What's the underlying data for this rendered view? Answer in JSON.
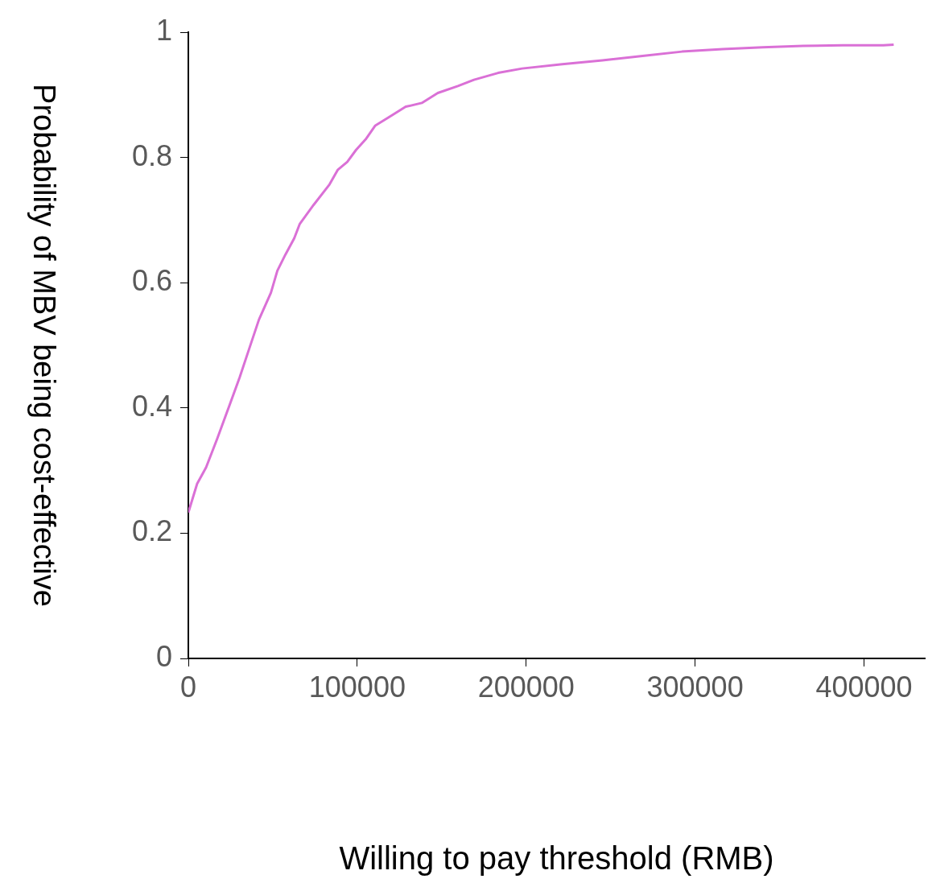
{
  "chart_data": {
    "type": "line",
    "xlabel": "Willing to pay threshold (RMB)",
    "ylabel": "Probability of MBV being cost-effective",
    "x": [
      0,
      5200,
      10500,
      17100,
      24200,
      30400,
      36100,
      41800,
      48900,
      52700,
      57500,
      62700,
      66000,
      74100,
      83600,
      88400,
      94100,
      99300,
      105000,
      110700,
      119200,
      128700,
      138200,
      147700,
      159600,
      169100,
      183400,
      197600,
      221400,
      245100,
      268900,
      292200,
      316400,
      340100,
      363900,
      387600,
      411400,
      417600
    ],
    "series": [
      {
        "color": "#da70d6",
        "values": [
          0.233,
          0.279,
          0.305,
          0.351,
          0.403,
          0.449,
          0.495,
          0.541,
          0.584,
          0.619,
          0.645,
          0.671,
          0.694,
          0.724,
          0.757,
          0.78,
          0.793,
          0.812,
          0.829,
          0.851,
          0.865,
          0.881,
          0.887,
          0.903,
          0.914,
          0.924,
          0.935,
          0.942,
          0.949,
          0.955,
          0.962,
          0.969,
          0.973,
          0.976,
          0.978,
          0.979,
          0.979,
          0.98
        ]
      }
    ],
    "xlim": [
      0,
      436000
    ],
    "xticks": [
      0,
      100000,
      200000,
      300000,
      400000
    ],
    "ylim": [
      0,
      1
    ],
    "yticks": [
      0,
      0.2,
      0.4,
      0.6,
      0.8,
      1
    ],
    "grid": false,
    "legend": false,
    "marker": "none",
    "line_style": "solid"
  }
}
